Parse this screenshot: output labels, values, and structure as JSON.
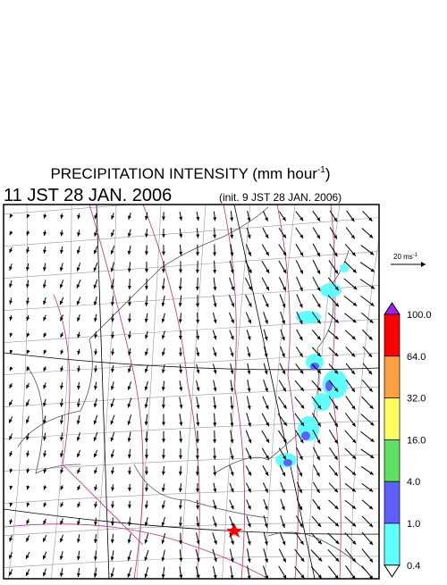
{
  "header": {
    "title_main": "PRECIPITATION INTENSITY (mm hour",
    "title_sup": "-1",
    "title_end": ")",
    "time": "11 JST 28 JAN. 2006",
    "init": "(init. 9 JST 28 JAN. 2006)"
  },
  "scale": {
    "label": "20 ms",
    "sup": "-1"
  },
  "colorbar": {
    "labels": [
      "100.0",
      "64.0",
      "32.0",
      "16.0",
      "4.0",
      "1.0",
      "0.4"
    ],
    "colors": [
      "#ff0000",
      "#ffa040",
      "#ffff60",
      "#60e060",
      "#6060ff",
      "#60ffff"
    ],
    "over_color": "#a020f0",
    "under_color": "#ffffff"
  }
}
